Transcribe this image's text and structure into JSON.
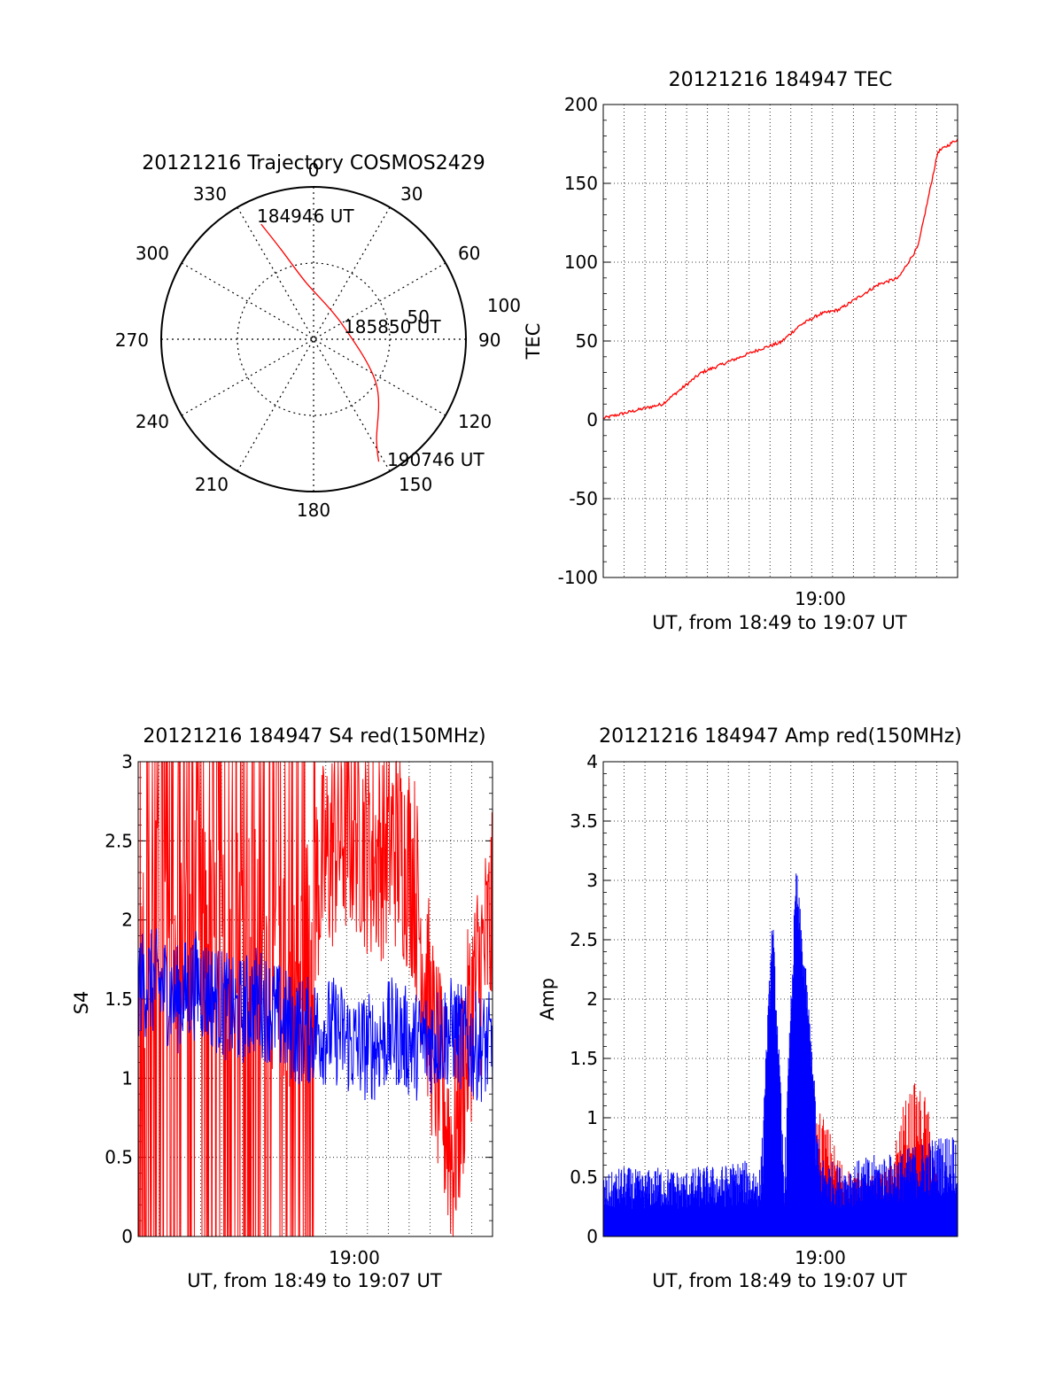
{
  "chart_data": [
    {
      "type": "polar-trajectory",
      "title": "20121216 Trajectory COSMOS2429",
      "angle_labels": [
        "0",
        "30",
        "60",
        "90",
        "120",
        "150",
        "180",
        "210",
        "240",
        "270",
        "300",
        "330"
      ],
      "radial_labels": [
        "50",
        "100"
      ],
      "rlim": [
        0,
        100
      ],
      "grid": true,
      "track": {
        "color": "#ff0000",
        "points": [
          {
            "az": 335.5,
            "r": 83
          },
          {
            "az": 340,
            "r": 63
          },
          {
            "az": 352,
            "r": 38
          },
          {
            "az": 60,
            "r": 21
          },
          {
            "az": 125,
            "r": 50
          },
          {
            "az": 148,
            "r": 78
          },
          {
            "az": 152,
            "r": 91
          }
        ]
      },
      "annotations": [
        {
          "text": "184946 UT",
          "at": "start"
        },
        {
          "text": "185850 UT",
          "at": "middle"
        },
        {
          "text": "190746 UT",
          "at": "end"
        }
      ]
    },
    {
      "type": "line",
      "title": "20121216 184947 TEC",
      "xlabel": "UT, from 18:49 to 19:07 UT",
      "ylabel": "TEC",
      "x_tick_label": "19:00",
      "xlim": [
        18.8167,
        19.1167
      ],
      "ylim": [
        -100,
        200
      ],
      "yticks": [
        -100,
        -50,
        0,
        50,
        100,
        150,
        200
      ],
      "grid": true,
      "series": [
        {
          "color": "#ff0000",
          "x": [
            18.8167,
            18.8333,
            18.85,
            18.8667,
            18.8833,
            18.9,
            18.9167,
            18.9333,
            18.95,
            18.9667,
            18.9833,
            19.0,
            19.0167,
            19.0333,
            19.05,
            19.0667,
            19.0833,
            19.1,
            19.1167
          ],
          "y": [
            1,
            4,
            7,
            10,
            20,
            30,
            35,
            40,
            45,
            49,
            60,
            67,
            70,
            78,
            86,
            90,
            110,
            170,
            178
          ]
        }
      ]
    },
    {
      "type": "line",
      "title": "20121216 184947 S4 red(150MHz)",
      "xlabel": "UT, from 18:49 to 19:07 UT",
      "ylabel": "S4",
      "x_tick_label": "19:00",
      "xlim": [
        18.8167,
        19.1167
      ],
      "ylim": [
        0,
        3
      ],
      "yticks": [
        0,
        0.5,
        1,
        1.5,
        2,
        2.5,
        3
      ],
      "grid": true,
      "series": [
        {
          "color": "#ff0000",
          "x": [
            18.8167,
            18.8333,
            18.85,
            18.8667,
            18.8833,
            18.9,
            18.9167,
            18.9333,
            18.95,
            18.9667,
            18.9833,
            19.0,
            19.0167,
            19.0333,
            19.05,
            19.0667,
            19.0833,
            19.1,
            19.1167
          ],
          "y": [
            1.8,
            2.0,
            1.9,
            2.1,
            1.8,
            2.0,
            1.9,
            1.7,
            1.5,
            2.2,
            2.5,
            2.6,
            2.4,
            2.5,
            2.3,
            1.2,
            0.5,
            1.5,
            2.0
          ]
        },
        {
          "color": "#0000ff",
          "x": [
            18.8167,
            18.8333,
            18.85,
            18.8667,
            18.8833,
            18.9,
            18.9167,
            18.9333,
            18.95,
            18.9667,
            18.9833,
            19.0,
            19.0167,
            19.0333,
            19.05,
            19.0667,
            19.0833,
            19.1,
            19.1167
          ],
          "y": [
            1.6,
            1.6,
            1.5,
            1.6,
            1.5,
            1.4,
            1.5,
            1.4,
            1.3,
            1.3,
            1.3,
            1.2,
            1.2,
            1.3,
            1.2,
            1.25,
            1.3,
            1.2,
            1.2
          ]
        }
      ]
    },
    {
      "type": "line",
      "title": "20121216 184947 Amp red(150MHz)",
      "xlabel": "UT, from 18:49 to 19:07 UT",
      "ylabel": "Amp",
      "x_tick_label": "19:00",
      "xlim": [
        18.8167,
        19.1167
      ],
      "ylim": [
        0,
        4
      ],
      "yticks": [
        0,
        0.5,
        1,
        1.5,
        2,
        2.5,
        3,
        3.5,
        4
      ],
      "grid": true,
      "series": [
        {
          "color": "#ff0000",
          "x": [
            18.95,
            18.97,
            18.99,
            19.0,
            19.02,
            19.04,
            19.06,
            19.07,
            19.08,
            19.09,
            19.1
          ],
          "y": [
            0.1,
            0.3,
            0.8,
            1.1,
            0.6,
            0.5,
            0.6,
            1.1,
            1.3,
            1.2,
            0.5
          ]
        },
        {
          "color": "#0000ff",
          "x": [
            18.8167,
            18.8333,
            18.85,
            18.8667,
            18.8833,
            18.9,
            18.9167,
            18.9333,
            18.95,
            18.96,
            18.97,
            18.98,
            18.99,
            19.0,
            19.0167,
            19.0333,
            19.05,
            19.0667,
            19.0833,
            19.1,
            19.1167
          ],
          "y": [
            0.5,
            0.6,
            0.55,
            0.6,
            0.55,
            0.6,
            0.6,
            0.65,
            0.6,
            2.75,
            0.6,
            3.15,
            2.05,
            0.7,
            0.6,
            0.65,
            0.7,
            0.7,
            0.8,
            0.85,
            0.9
          ]
        }
      ]
    }
  ]
}
